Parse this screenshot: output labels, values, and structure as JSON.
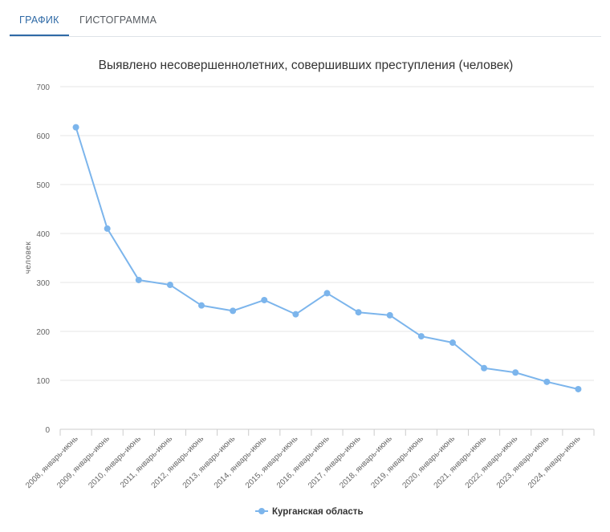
{
  "tabs": [
    {
      "label": "ГРАФИК",
      "active": true
    },
    {
      "label": "ГИСТОГРАММА",
      "active": false
    }
  ],
  "colors": {
    "series": "#7cb5ec",
    "tab_active": "#2f6aa6",
    "grid": "#e6e6e6"
  },
  "chart_data": {
    "type": "line",
    "title": "Выявлено несовершеннолетних, совершивших преступления (человек)",
    "ylabel": "человек",
    "xlabel": "",
    "ylim": [
      0,
      700
    ],
    "yticks": [
      0,
      100,
      200,
      300,
      400,
      500,
      600,
      700
    ],
    "grid": true,
    "legend": "bottom-center",
    "categories": [
      "2008, январь-июнь",
      "2009, январь-июнь",
      "2010, январь-июнь",
      "2011, январь-июнь",
      "2012, январь-июнь",
      "2013, январь-июнь",
      "2014, январь-июнь",
      "2015, январь-июнь",
      "2016, январь-июнь",
      "2017, январь-июнь",
      "2018, январь-июнь",
      "2019, январь-июнь",
      "2020, январь-июнь",
      "2021, январь-июнь",
      "2022, январь-июнь",
      "2023, январь-июнь",
      "2024, январь-июнь"
    ],
    "series": [
      {
        "name": "Курганская область",
        "values": [
          617,
          410,
          305,
          295,
          253,
          242,
          264,
          235,
          278,
          239,
          233,
          190,
          177,
          125,
          116,
          97,
          82
        ]
      }
    ]
  }
}
